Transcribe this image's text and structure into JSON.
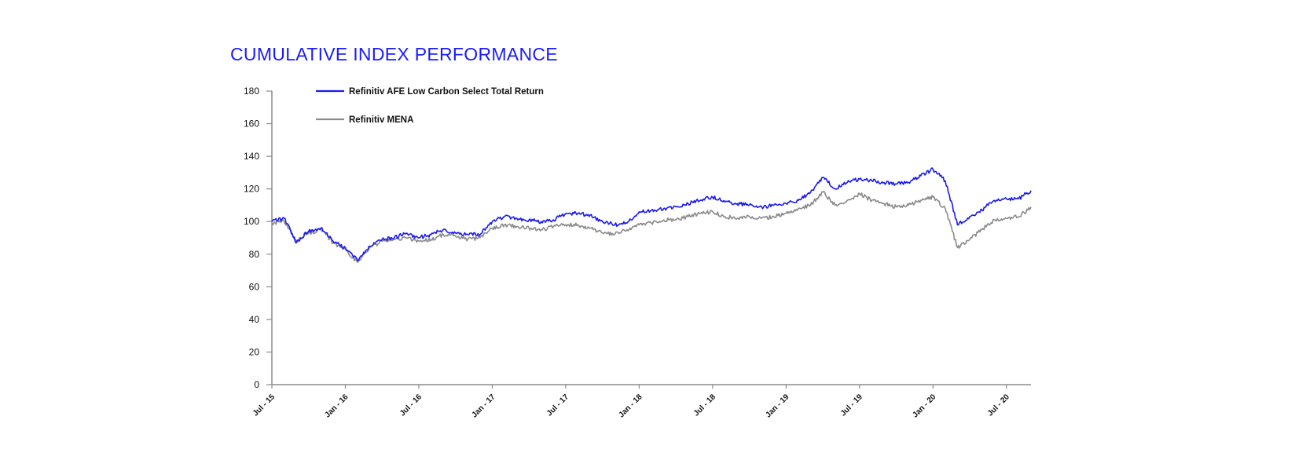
{
  "title": "CUMULATIVE INDEX PERFORMANCE",
  "chart_data": {
    "type": "line",
    "title": "CUMULATIVE INDEX PERFORMANCE",
    "xlabel": "",
    "ylabel": "",
    "ylim": [
      0,
      180
    ],
    "yticks": [
      0,
      20,
      40,
      60,
      80,
      100,
      120,
      140,
      160,
      180
    ],
    "xticks": [
      "Jul - 15",
      "Jan - 16",
      "Jul - 16",
      "Jan - 17",
      "Jul - 17",
      "Jan - 18",
      "Jul - 18",
      "Jan - 19",
      "Jul - 19",
      "Jan - 20",
      "Jul - 20"
    ],
    "x": [
      "Jul-15",
      "Aug-15",
      "Sep-15",
      "Oct-15",
      "Nov-15",
      "Dec-15",
      "Jan-16",
      "Feb-16",
      "Mar-16",
      "Apr-16",
      "May-16",
      "Jun-16",
      "Jul-16",
      "Aug-16",
      "Sep-16",
      "Oct-16",
      "Nov-16",
      "Dec-16",
      "Jan-17",
      "Feb-17",
      "Mar-17",
      "Apr-17",
      "May-17",
      "Jun-17",
      "Jul-17",
      "Aug-17",
      "Sep-17",
      "Oct-17",
      "Nov-17",
      "Dec-17",
      "Jan-18",
      "Feb-18",
      "Mar-18",
      "Apr-18",
      "May-18",
      "Jun-18",
      "Jul-18",
      "Aug-18",
      "Sep-18",
      "Oct-18",
      "Nov-18",
      "Dec-18",
      "Jan-19",
      "Feb-19",
      "Mar-19",
      "Apr-19",
      "May-19",
      "Jun-19",
      "Jul-19",
      "Aug-19",
      "Sep-19",
      "Oct-19",
      "Nov-19",
      "Dec-19",
      "Jan-20",
      "Feb-20",
      "Mar-20",
      "Apr-20",
      "May-20",
      "Jun-20",
      "Jul-20",
      "Aug-20",
      "Sep-20"
    ],
    "grid": false,
    "legend_position": "top-left",
    "series": [
      {
        "name": "Refinitiv AFE Low Carbon Select Total Return",
        "color": "#1a1aee",
        "values": [
          100,
          102,
          87,
          94,
          96,
          88,
          84,
          76,
          85,
          89,
          90,
          93,
          90,
          92,
          95,
          93,
          92,
          92,
          100,
          103,
          102,
          101,
          100,
          101,
          105,
          105,
          104,
          100,
          98,
          99,
          106,
          107,
          108,
          109,
          111,
          113,
          115,
          112,
          111,
          110,
          109,
          110,
          111,
          113,
          118,
          127,
          120,
          124,
          126,
          125,
          124,
          123,
          124,
          128,
          132,
          125,
          98,
          103,
          107,
          113,
          114,
          114,
          119
        ]
      },
      {
        "name": "Refinitiv MENA",
        "color": "#8a8a8a",
        "values": [
          99,
          100,
          88,
          93,
          95,
          87,
          83,
          75,
          84,
          88,
          89,
          90,
          88,
          89,
          92,
          91,
          89,
          90,
          96,
          98,
          97,
          96,
          95,
          97,
          98,
          98,
          96,
          93,
          92,
          95,
          98,
          99,
          101,
          101,
          103,
          105,
          106,
          103,
          102,
          103,
          102,
          103,
          105,
          108,
          110,
          118,
          110,
          113,
          117,
          113,
          111,
          109,
          110,
          113,
          115,
          108,
          84,
          89,
          95,
          101,
          102,
          103,
          109
        ]
      }
    ]
  }
}
